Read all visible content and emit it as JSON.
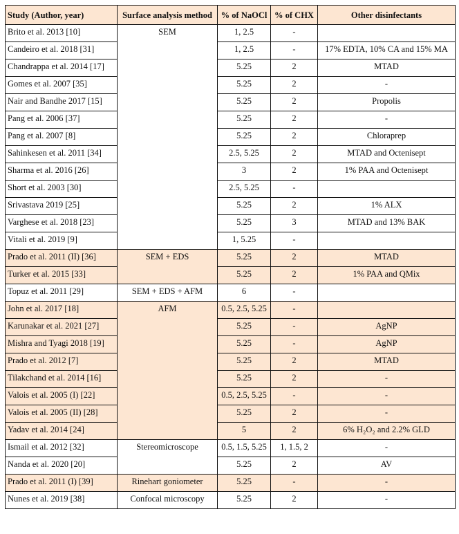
{
  "colors": {
    "shade": "#fde6d2",
    "border": "#111111"
  },
  "headers": [
    "Study (Author, year)",
    "Surface analysis method",
    "% of NaOCl",
    "% of CHX",
    "Other disinfectants"
  ],
  "groups": [
    {
      "method": "SEM",
      "shaded": false,
      "rows": [
        {
          "study": "Brito et al. 2013 [10]",
          "naocl": "1, 2.5",
          "chx": "-",
          "other": ""
        },
        {
          "study": "Candeiro et al. 2018 [31]",
          "naocl": "1, 2.5",
          "chx": "-",
          "other": "17% EDTA, 10% CA and 15% MA"
        },
        {
          "study": "Chandrappa et al. 2014 [17]",
          "naocl": "5.25",
          "chx": "2",
          "other": "MTAD"
        },
        {
          "study": "Gomes et al. 2007 [35]",
          "naocl": "5.25",
          "chx": "2",
          "other": "-"
        },
        {
          "study": "Nair and Bandhe 2017 [15]",
          "naocl": "5.25",
          "chx": "2",
          "other": "Propolis"
        },
        {
          "study": "Pang et al. 2006 [37]",
          "naocl": "5.25",
          "chx": "2",
          "other": "-"
        },
        {
          "study": "Pang et al. 2007 [8]",
          "naocl": "5.25",
          "chx": "2",
          "other": "Chloraprep"
        },
        {
          "study": "Sahinkesen et al. 2011 [34]",
          "naocl": "2.5, 5.25",
          "chx": "2",
          "other": "MTAD and Octenisept"
        },
        {
          "study": "Sharma et al. 2016 [26]",
          "naocl": "3",
          "chx": "2",
          "other": "1% PAA and Octenisept"
        },
        {
          "study": "Short et al. 2003 [30]",
          "naocl": "2.5, 5.25",
          "chx": "-",
          "other": ""
        },
        {
          "study": "Srivastava 2019 [25]",
          "naocl": "5.25",
          "chx": "2",
          "other": "1% ALX"
        },
        {
          "study": "Varghese et al. 2018 [23]",
          "naocl": "5.25",
          "chx": "3",
          "other": "MTAD and 13% BAK"
        },
        {
          "study": "Vitali et al. 2019 [9]",
          "naocl": "1, 5.25",
          "chx": "-",
          "other": ""
        }
      ]
    },
    {
      "method": "SEM + EDS",
      "shaded": true,
      "rows": [
        {
          "study": "Prado et al. 2011 (II) [36]",
          "naocl": "5.25",
          "chx": "2",
          "other": "MTAD"
        },
        {
          "study": "Turker et al. 2015 [33]",
          "naocl": "5.25",
          "chx": "2",
          "other": "1% PAA and QMix"
        }
      ]
    },
    {
      "method": "SEM + EDS + AFM",
      "shaded": false,
      "rows": [
        {
          "study": "Topuz et al. 2011 [29]",
          "naocl": "6",
          "chx": "-",
          "other": ""
        }
      ]
    },
    {
      "method": "AFM",
      "shaded": true,
      "rows": [
        {
          "study": "John et al. 2017 [18]",
          "naocl": "0.5, 2.5, 5.25",
          "chx": "-",
          "other": ""
        },
        {
          "study": "Karunakar et al. 2021 [27]",
          "naocl": "5.25",
          "chx": "-",
          "other": "AgNP"
        },
        {
          "study": "Mishra and Tyagi 2018 [19]",
          "naocl": "5.25",
          "chx": "-",
          "other": "AgNP"
        },
        {
          "study": "Prado et al. 2012 [7]",
          "naocl": "5.25",
          "chx": "2",
          "other": "MTAD"
        },
        {
          "study": "Tilakchand et al. 2014 [16]",
          "naocl": "5.25",
          "chx": "2",
          "other": "-"
        },
        {
          "study": "Valois et al. 2005 (I) [22]",
          "naocl": "0.5, 2.5, 5.25",
          "chx": "-",
          "other": "-"
        },
        {
          "study": "Valois et al. 2005 (II) [28]",
          "naocl": "5.25",
          "chx": "2",
          "other": "-"
        },
        {
          "study": "Yadav et al. 2014 [24]",
          "naocl": "5",
          "chx": "2",
          "other": "6% H₂O₂ and 2.2% GLD"
        }
      ]
    },
    {
      "method": "Stereomicroscope",
      "shaded": false,
      "rows": [
        {
          "study": "Ismail et al. 2012 [32]",
          "naocl": "0.5, 1.5, 5.25",
          "chx": "1, 1.5, 2",
          "other": "-"
        },
        {
          "study": "Nanda et al. 2020 [20]",
          "naocl": "5.25",
          "chx": "2",
          "other": "AV"
        }
      ]
    },
    {
      "method": "Rinehart goniometer",
      "shaded": true,
      "rows": [
        {
          "study": "Prado et al. 2011 (I) [39]",
          "naocl": "5.25",
          "chx": "-",
          "other": "-"
        }
      ]
    },
    {
      "method": "Confocal microscopy",
      "shaded": false,
      "rows": [
        {
          "study": "Nunes et al. 2019 [38]",
          "naocl": "5.25",
          "chx": "2",
          "other": "-"
        }
      ]
    }
  ]
}
